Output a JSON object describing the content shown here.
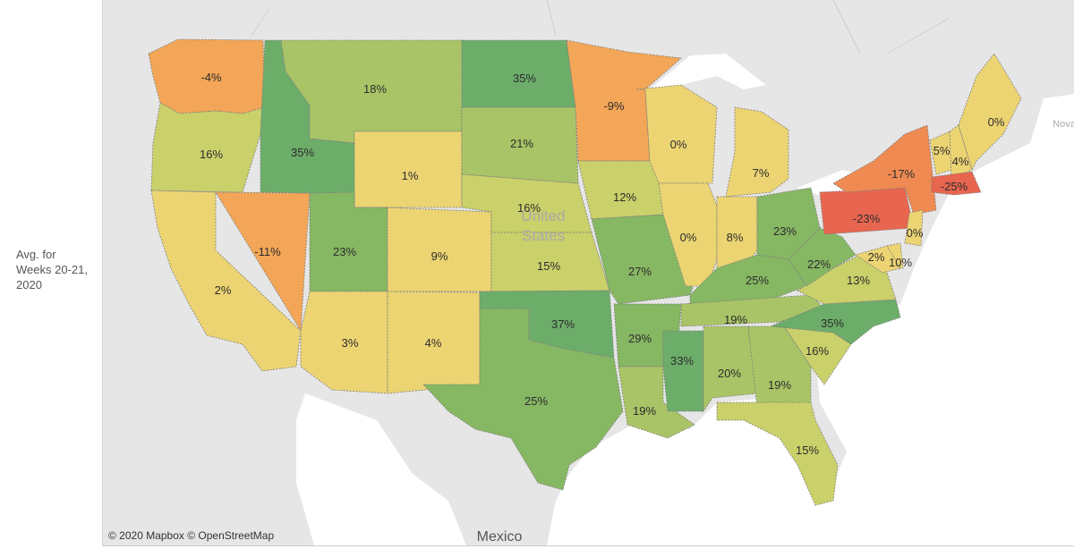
{
  "side_label": {
    "line1": "Avg. for",
    "line2": "Weeks 20-21,",
    "line3": "2020"
  },
  "map": {
    "attribution": "© 2020 Mapbox © OpenStreetMap",
    "place_labels": {
      "mexico": "Mexico",
      "united": "United",
      "states": "States",
      "nova": "Nova"
    },
    "colors": {
      "deep_green": "#6cad6a",
      "green": "#86b763",
      "light_green": "#a9c466",
      "yellow_green": "#cad06a",
      "yellow": "#ecd472",
      "orange": "#f3a657",
      "orange_red": "#ee8a52",
      "red": "#e8654f",
      "land": "#e6e6e6",
      "water": "#ffffff"
    },
    "states": [
      {
        "id": "WA",
        "value": "-4%"
      },
      {
        "id": "OR",
        "value": "16%"
      },
      {
        "id": "CA",
        "value": "2%"
      },
      {
        "id": "NV",
        "value": "-11%"
      },
      {
        "id": "ID",
        "value": "35%"
      },
      {
        "id": "MT",
        "value": "18%"
      },
      {
        "id": "WY",
        "value": "1%"
      },
      {
        "id": "UT",
        "value": "23%"
      },
      {
        "id": "CO",
        "value": "9%"
      },
      {
        "id": "AZ",
        "value": "3%"
      },
      {
        "id": "NM",
        "value": "4%"
      },
      {
        "id": "ND",
        "value": "35%"
      },
      {
        "id": "SD",
        "value": "21%"
      },
      {
        "id": "NE",
        "value": "16%"
      },
      {
        "id": "KS",
        "value": "15%"
      },
      {
        "id": "OK",
        "value": "37%"
      },
      {
        "id": "TX",
        "value": "25%"
      },
      {
        "id": "MN",
        "value": "-9%"
      },
      {
        "id": "IA",
        "value": "12%"
      },
      {
        "id": "MO",
        "value": "27%"
      },
      {
        "id": "AR",
        "value": "29%"
      },
      {
        "id": "LA",
        "value": "19%"
      },
      {
        "id": "WI",
        "value": "0%"
      },
      {
        "id": "IL",
        "value": "0%"
      },
      {
        "id": "MS",
        "value": "33%"
      },
      {
        "id": "MI",
        "value": "7%"
      },
      {
        "id": "IN",
        "value": "8%"
      },
      {
        "id": "OH",
        "value": "23%"
      },
      {
        "id": "KY",
        "value": "25%"
      },
      {
        "id": "TN",
        "value": "19%"
      },
      {
        "id": "AL",
        "value": "20%"
      },
      {
        "id": "GA",
        "value": "19%"
      },
      {
        "id": "FL",
        "value": "15%"
      },
      {
        "id": "SC",
        "value": "16%"
      },
      {
        "id": "NC",
        "value": "35%"
      },
      {
        "id": "VA",
        "value": "13%"
      },
      {
        "id": "WV",
        "value": "22%"
      },
      {
        "id": "PA",
        "value": "-23%"
      },
      {
        "id": "NY",
        "value": "-17%"
      },
      {
        "id": "VT",
        "value": "5%"
      },
      {
        "id": "NH",
        "value": "4%"
      },
      {
        "id": "ME",
        "value": "0%"
      },
      {
        "id": "MA",
        "value": "-25%"
      },
      {
        "id": "NJ",
        "value": "0%"
      },
      {
        "id": "DE",
        "value": "2%"
      },
      {
        "id": "MD",
        "value": "10%"
      }
    ]
  }
}
